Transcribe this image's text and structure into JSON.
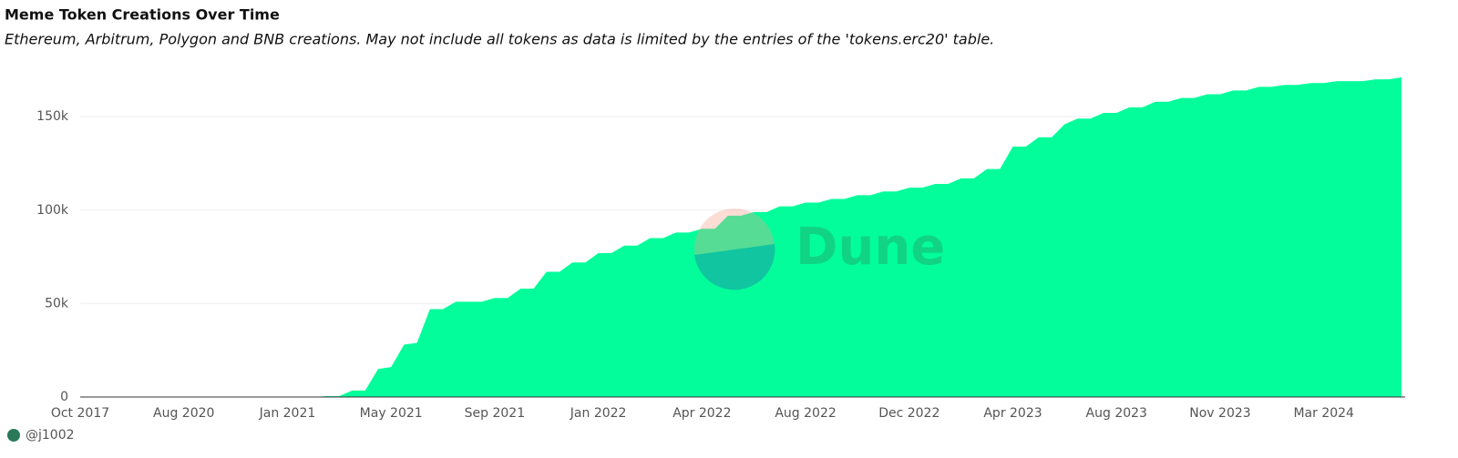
{
  "chart_data": {
    "type": "area",
    "title": "Meme Token Creations Over Time",
    "subtitle": "Ethereum, Arbitrum, Polygon and BNB creations. May not include all tokens as data is limited by the entries of the 'tokens.erc20' table.",
    "author": "@j1002",
    "watermark": "Dune",
    "color": "#03fd9b",
    "grid": true,
    "categories": [
      "Oct 2017",
      null,
      null,
      null,
      null,
      null,
      null,
      null,
      "Aug 2020",
      null,
      null,
      null,
      null,
      null,
      null,
      null,
      "Jan 2021",
      null,
      null,
      null,
      null,
      null,
      null,
      null,
      "May 2021",
      null,
      null,
      null,
      null,
      null,
      null,
      null,
      "Sep 2021",
      null,
      null,
      null,
      null,
      null,
      null,
      null,
      "Jan 2022",
      null,
      null,
      null,
      null,
      null,
      null,
      null,
      "Apr 2022",
      null,
      null,
      null,
      null,
      null,
      null,
      null,
      "Aug 2022",
      null,
      null,
      null,
      null,
      null,
      null,
      null,
      "Dec 2022",
      null,
      null,
      null,
      null,
      null,
      null,
      null,
      "Apr 2023",
      null,
      null,
      null,
      null,
      null,
      null,
      null,
      "Aug 2023",
      null,
      null,
      null,
      null,
      null,
      null,
      null,
      "Nov 2023",
      null,
      null,
      null,
      null,
      null,
      null,
      null,
      "Mar 2024",
      null,
      null,
      null,
      null,
      null,
      null
    ],
    "values": [
      0,
      0,
      0,
      0,
      0,
      0,
      0,
      0,
      0,
      0,
      0,
      0,
      0,
      0,
      0,
      0,
      0,
      0,
      0,
      500,
      500,
      3500,
      3500,
      15000,
      16000,
      28000,
      29000,
      47000,
      47000,
      51000,
      51000,
      51000,
      53000,
      53000,
      58000,
      58000,
      67000,
      67000,
      72000,
      72000,
      77000,
      77000,
      81000,
      81000,
      85000,
      85000,
      88000,
      88000,
      90000,
      90000,
      97000,
      97000,
      99000,
      99000,
      102000,
      102000,
      104000,
      104000,
      106000,
      106000,
      108000,
      108000,
      110000,
      110000,
      112000,
      112000,
      114000,
      114000,
      117000,
      117000,
      122000,
      122000,
      134000,
      134000,
      139000,
      139000,
      146000,
      149000,
      149000,
      152000,
      152000,
      155000,
      155000,
      158000,
      158000,
      160000,
      160000,
      162000,
      162000,
      164000,
      164000,
      166000,
      166000,
      167000,
      167000,
      168000,
      168000,
      169000,
      169000,
      169000,
      170000,
      170000,
      171000
    ],
    "ylim": [
      0,
      172000
    ],
    "yticks": [
      0,
      {
        "value": 50000,
        "label": "50k"
      },
      {
        "value": 100000,
        "label": "100k"
      },
      {
        "value": 150000,
        "label": "150k"
      }
    ]
  }
}
